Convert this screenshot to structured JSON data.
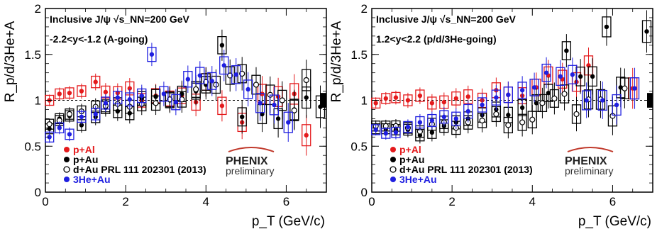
{
  "colors": {
    "pAl": "#e41a1c",
    "pAu": "#000000",
    "dAu": "#000000",
    "He3Au": "#1f1fe0"
  },
  "logo": {
    "text": "PHENIX",
    "sub": "preliminary"
  },
  "chart_data": [
    {
      "type": "scatter",
      "title_line1": "Inclusive J/ψ  √s_NN=200 GeV",
      "title_line2": "-2.2<y<-1.2 (A-going)",
      "xlabel": "p_T (GeV/c)",
      "ylabel": "R_p/d/3He+A",
      "xlim": [
        0,
        7.0
      ],
      "ylim": [
        0,
        2
      ],
      "xticks": [
        0,
        2,
        4,
        6
      ],
      "yticks": [
        0,
        0.5,
        1,
        1.5,
        2
      ],
      "ytick_labels": [
        "0",
        "0.5",
        "1",
        "1.5",
        "2"
      ],
      "legend": [
        "p+Al",
        "p+Au",
        "d+Au PRL 111 202301 (2013)",
        "3He+Au"
      ],
      "series": [
        {
          "name": "p+Al",
          "key": "pAl",
          "style": "filled",
          "x": [
            0.1,
            0.35,
            0.6,
            0.9,
            1.25,
            1.5,
            1.8,
            2.1,
            2.4,
            2.75,
            3.1,
            3.4,
            3.75,
            4.0,
            4.4,
            4.9,
            5.4,
            5.8,
            6.2,
            6.5
          ],
          "y": [
            1.0,
            1.07,
            1.08,
            1.1,
            1.2,
            1.09,
            1.08,
            1.13,
            1.0,
            1.05,
            1.02,
            1.05,
            0.98,
            1.2,
            0.94,
            0.76,
            1.07,
            1.04,
            1.07,
            0.62
          ]
        },
        {
          "name": "p+Au",
          "key": "pAu",
          "style": "filled",
          "x": [
            0.1,
            0.35,
            0.6,
            0.9,
            1.25,
            1.5,
            1.8,
            2.1,
            2.4,
            2.75,
            3.1,
            3.4,
            3.75,
            4.0,
            4.4,
            4.9,
            5.4,
            5.8,
            6.2,
            6.5,
            6.85
          ],
          "y": [
            0.69,
            0.8,
            0.83,
            0.73,
            0.82,
            0.92,
            0.88,
            0.86,
            1.02,
            1.04,
            1.0,
            1.07,
            1.1,
            1.17,
            1.6,
            0.82,
            0.85,
            0.8,
            0.9,
            1.03,
            0.93
          ]
        },
        {
          "name": "d+Au PRL 111 202301 (2013)",
          "key": "dAu",
          "style": "open",
          "x": [
            0.1,
            0.35,
            0.6,
            0.9,
            1.25,
            1.5,
            1.8,
            2.1,
            2.4,
            2.75,
            3.1,
            3.4,
            3.75,
            4.0,
            4.25,
            4.6,
            4.9,
            5.25,
            5.6,
            5.9,
            6.2,
            6.5
          ],
          "y": [
            0.74,
            0.78,
            0.85,
            0.88,
            0.93,
            0.94,
            0.96,
            0.93,
            0.96,
            0.97,
            1.01,
            1.01,
            1.12,
            1.2,
            1.17,
            1.27,
            1.29,
            1.17,
            1.06,
            1.0,
            0.89,
            1.22
          ]
        },
        {
          "name": "3He+Au",
          "key": "He3Au",
          "style": "filled",
          "x": [
            0.1,
            0.35,
            0.6,
            0.9,
            1.25,
            1.5,
            1.8,
            2.1,
            2.4,
            2.65,
            2.95,
            3.25,
            3.55,
            3.85,
            4.15,
            4.45,
            4.75,
            5.05,
            5.35,
            5.7,
            6.05
          ],
          "y": [
            0.6,
            0.7,
            0.63,
            0.82,
            0.85,
            0.97,
            1.03,
            1.01,
            1.05,
            1.5,
            1.07,
            0.98,
            1.23,
            1.27,
            1.21,
            1.38,
            1.28,
            1.12,
            0.97,
            0.95,
            0.76
          ]
        }
      ]
    },
    {
      "type": "scatter",
      "title_line1": "Inclusive J/ψ  √s_NN=200 GeV",
      "title_line2": "1.2<y<2.2 (p/d/3He-going)",
      "xlabel": "p_T (GeV/c)",
      "ylabel": "R_p/d/3He+A",
      "xlim": [
        0,
        7.0
      ],
      "ylim": [
        0,
        2
      ],
      "xticks": [
        0,
        2,
        4,
        6
      ],
      "yticks": [
        0,
        0.5,
        1,
        1.5,
        2
      ],
      "ytick_labels": [
        "0",
        "0.5",
        "1",
        "1.5",
        "2"
      ],
      "legend": [
        "p+Al",
        "p+Au",
        "d+Au PRL 111 202301 (2013)",
        "3He+Au"
      ],
      "series": [
        {
          "name": "p+Al",
          "key": "pAl",
          "style": "filled",
          "x": [
            0.1,
            0.35,
            0.6,
            0.9,
            1.2,
            1.5,
            1.8,
            2.1,
            2.4,
            2.75,
            3.1,
            3.4,
            3.75,
            4.1,
            4.4,
            4.75,
            5.1,
            5.4,
            6.5
          ],
          "y": [
            0.97,
            1.02,
            1.03,
            1.0,
            1.05,
            0.97,
            0.98,
            1.02,
            1.04,
            1.0,
            1.11,
            1.06,
            1.05,
            1.14,
            1.27,
            1.23,
            1.2,
            1.38,
            1.13
          ]
        },
        {
          "name": "p+Au",
          "key": "pAu",
          "style": "filled",
          "x": [
            0.1,
            0.35,
            0.6,
            0.9,
            1.2,
            1.5,
            1.8,
            2.1,
            2.4,
            2.75,
            3.1,
            3.4,
            3.75,
            4.1,
            4.4,
            4.85,
            5.2,
            5.5,
            5.85,
            6.2,
            6.85
          ],
          "y": [
            0.69,
            0.69,
            0.68,
            0.68,
            0.62,
            0.65,
            0.72,
            0.76,
            0.8,
            0.84,
            0.9,
            0.84,
            0.92,
            0.97,
            1.08,
            1.54,
            1.26,
            1.26,
            1.8,
            1.14,
            1.75
          ]
        },
        {
          "name": "d+Au PRL 111 202301 (2013)",
          "key": "dAu",
          "style": "open",
          "x": [
            0.1,
            0.35,
            0.6,
            0.9,
            1.2,
            1.5,
            1.8,
            2.1,
            2.4,
            2.75,
            3.1,
            3.4,
            3.75,
            4.0,
            4.25,
            4.55,
            4.8,
            5.1,
            5.4,
            5.7,
            6.0,
            6.3
          ],
          "y": [
            0.72,
            0.72,
            0.72,
            0.7,
            0.66,
            0.74,
            0.76,
            0.7,
            0.76,
            0.78,
            0.85,
            0.73,
            0.76,
            0.79,
            0.97,
            1.02,
            1.07,
            0.85,
            1.01,
            1.01,
            0.83,
            1.13
          ]
        },
        {
          "name": "3He+Au",
          "key": "He3Au",
          "style": "filled",
          "x": [
            0.1,
            0.35,
            0.6,
            0.9,
            1.2,
            1.5,
            1.8,
            2.1,
            2.4,
            2.75,
            3.1,
            3.4,
            3.75,
            4.05,
            4.35,
            4.7,
            5.0,
            5.35,
            5.75,
            6.1,
            6.55
          ],
          "y": [
            0.68,
            0.64,
            0.65,
            0.71,
            0.76,
            0.78,
            0.82,
            0.8,
            0.88,
            0.95,
            1.03,
            1.06,
            1.11,
            1.14,
            1.3,
            1.26,
            1.28,
            1.0,
            1.0,
            0.95,
            1.13
          ]
        }
      ]
    }
  ]
}
